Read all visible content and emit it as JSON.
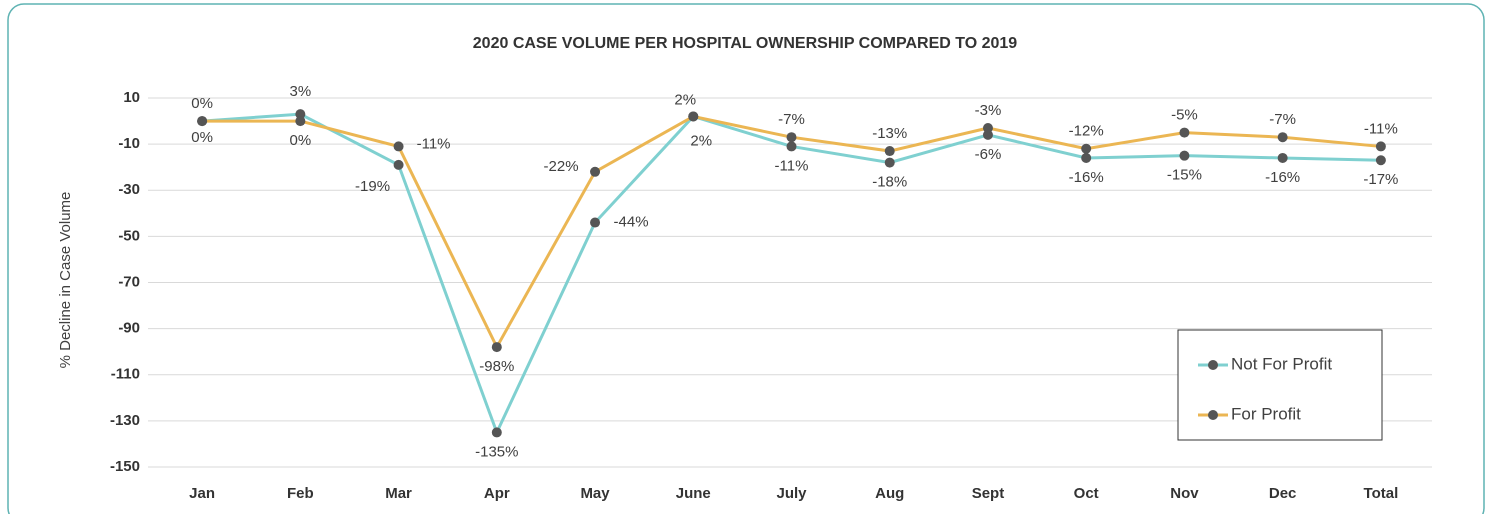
{
  "chart_data": {
    "type": "line",
    "title": "2020 CASE VOLUME PER HOSPITAL OWNERSHIP COMPARED TO 2019",
    "y_label": "% Decline in Case Volume",
    "categories": [
      "Jan",
      "Feb",
      "Mar",
      "Apr",
      "May",
      "June",
      "July",
      "Aug",
      "Sept",
      "Oct",
      "Nov",
      "Dec",
      "Total"
    ],
    "series": [
      {
        "name": "Not For Profit",
        "color": "#7fd0d0",
        "values": [
          0,
          3,
          -19,
          -135,
          -44,
          2,
          -11,
          -18,
          -6,
          -16,
          -15,
          -16,
          -17
        ],
        "value_labels": [
          "0%",
          "3%",
          "-19%",
          "-135%",
          "-44%",
          "2%",
          "-11%",
          "-18%",
          "-6%",
          "-16%",
          "-15%",
          "-16%",
          "-17%"
        ]
      },
      {
        "name": "For Profit",
        "color": "#ebb653",
        "values": [
          0,
          0,
          -11,
          -98,
          -22,
          2,
          -7,
          -13,
          -3,
          -12,
          -5,
          -7,
          -11
        ],
        "value_labels": [
          "0%",
          "0%",
          "-11%",
          "-98%",
          "-22%",
          "2%",
          "-7%",
          "-13%",
          "-3%",
          "-12%",
          "-5%",
          "-7%",
          "-11%"
        ]
      }
    ],
    "marker_color": "#555555",
    "ylim": [
      -150,
      10
    ],
    "yticks": [
      10,
      -10,
      -30,
      -50,
      -70,
      -90,
      -110,
      -130,
      -150
    ],
    "grid": true,
    "legend_position": "bottom-right"
  }
}
